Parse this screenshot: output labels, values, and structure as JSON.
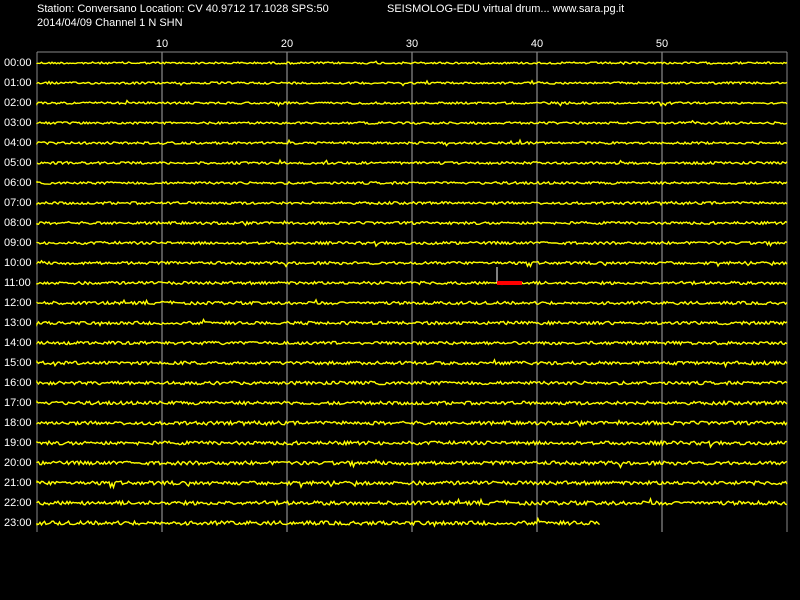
{
  "header": {
    "station": "Station: Conversano Location: CV 40.9712 17.1028 SPS:50",
    "app": "SEISMOLOG-EDU virtual drum... www.sara.pg.it",
    "date_channel": "2014/04/09  Channel 1 N SHN"
  },
  "minute_ticks": [
    10,
    20,
    30,
    40,
    50
  ],
  "hour_labels": [
    "00:00",
    "01:00",
    "02:00",
    "03:00",
    "04:00",
    "05:00",
    "06:00",
    "07:00",
    "08:00",
    "09:00",
    "10:00",
    "11:00",
    "12:00",
    "13:00",
    "14:00",
    "15:00",
    "16:00",
    "17:00",
    "18:00",
    "19:00",
    "20:00",
    "21:00",
    "22:00",
    "23:00"
  ]
}
